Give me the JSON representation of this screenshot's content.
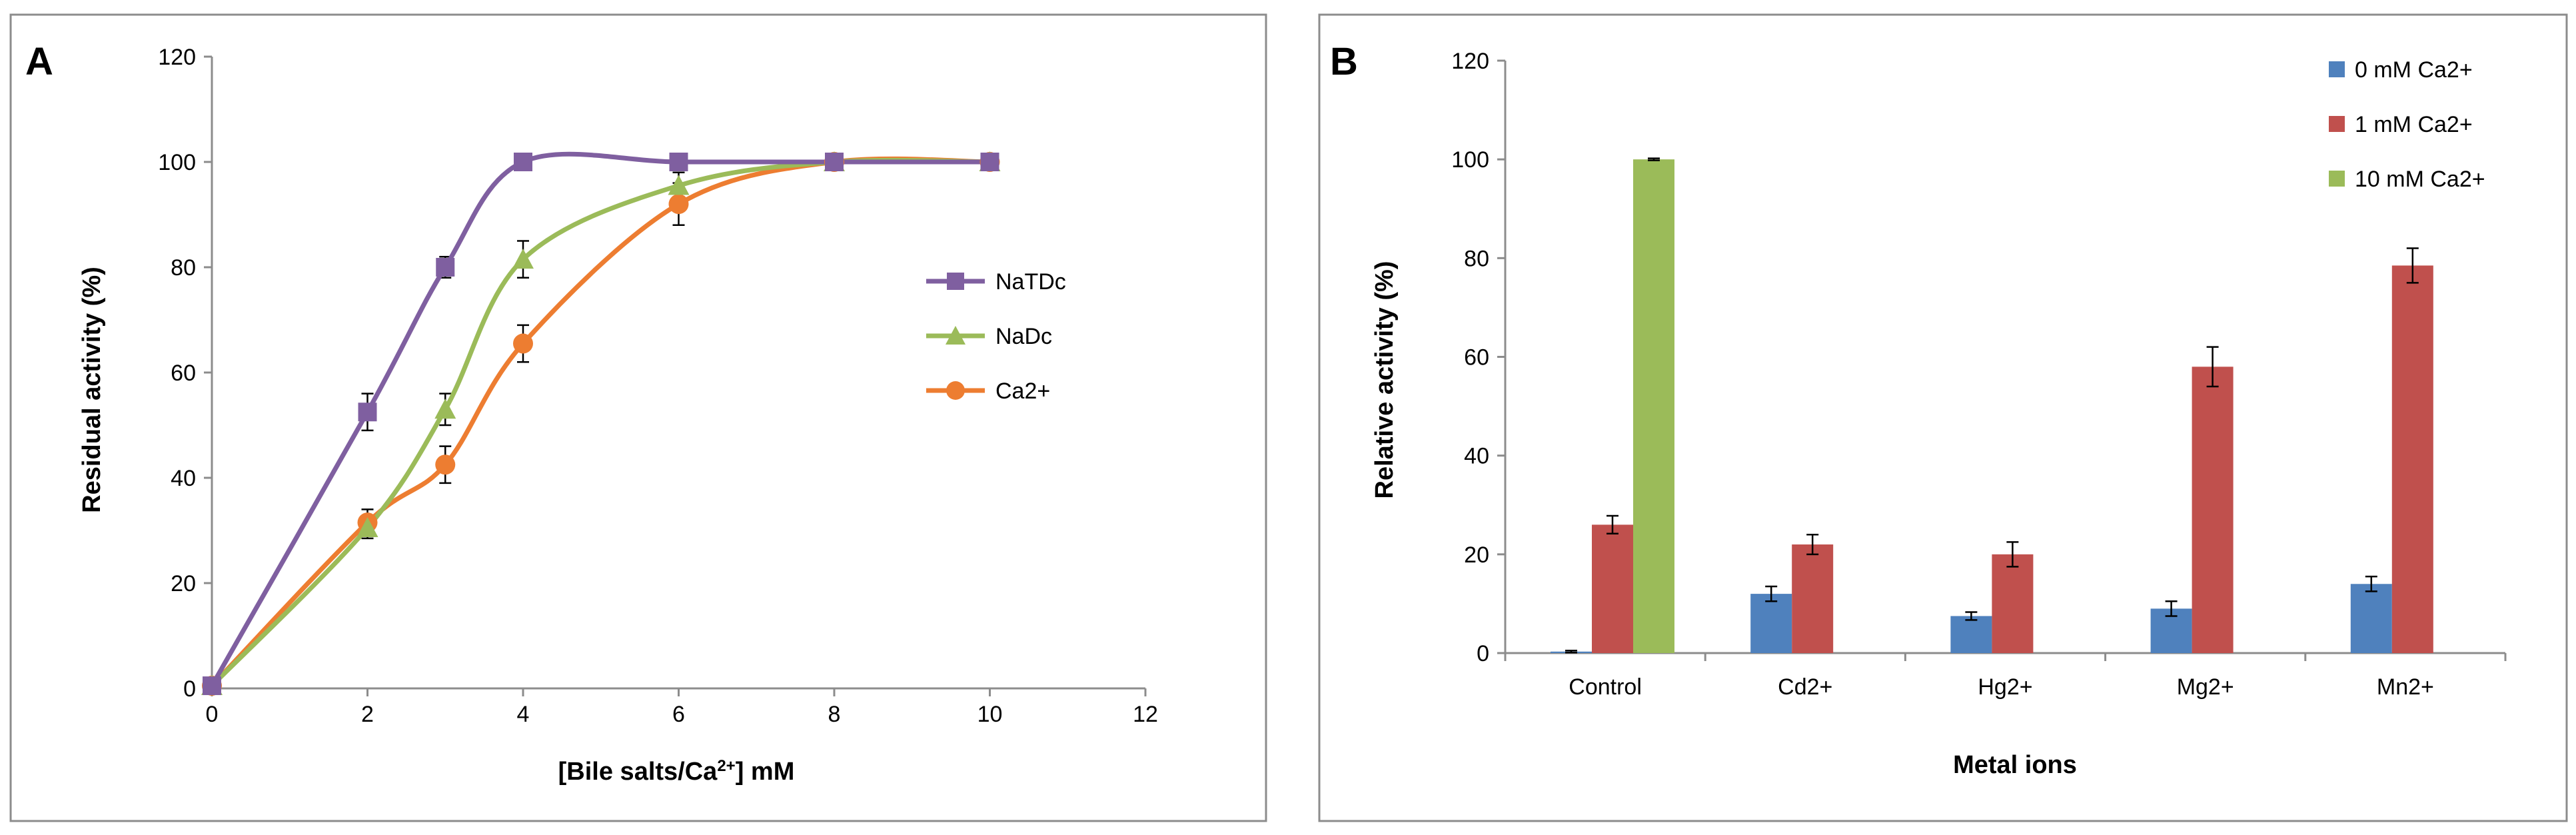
{
  "chart_data": [
    {
      "panel": "A",
      "type": "line",
      "xlabel_main": "[Bile salts/Ca",
      "xlabel_sup": "2+",
      "xlabel_tail": "] mM",
      "ylabel": "Residual activity (%)",
      "xlim": [
        0,
        12
      ],
      "ylim": [
        0,
        120
      ],
      "xticks": [
        0,
        2,
        4,
        6,
        8,
        10,
        12
      ],
      "yticks": [
        0,
        20,
        40,
        60,
        80,
        100,
        120
      ],
      "grid": false,
      "legend": "right",
      "series": [
        {
          "name": "NaTDc",
          "color": "#7f5fa0",
          "marker": "square",
          "x": [
            0,
            2,
            3,
            4,
            6,
            8,
            10
          ],
          "y": [
            0.5,
            52.5,
            80,
            100,
            100,
            100,
            100
          ],
          "err": [
            1,
            3.5,
            2,
            0.5,
            1,
            0.5,
            0.5
          ]
        },
        {
          "name": "NaDc",
          "color": "#9bbb59",
          "marker": "triangle",
          "x": [
            0,
            2,
            3,
            4,
            6,
            8,
            10
          ],
          "y": [
            0.5,
            30.5,
            53,
            81.5,
            95.5,
            100,
            100
          ],
          "err": [
            0.5,
            2,
            3,
            3.5,
            2.5,
            0.5,
            0.5
          ]
        },
        {
          "name": "Ca2+",
          "color": "#ed7d31",
          "marker": "circle",
          "x": [
            0,
            2,
            3,
            4,
            6,
            8,
            10
          ],
          "y": [
            0.5,
            31.5,
            42.5,
            65.5,
            92,
            100,
            100
          ],
          "err": [
            0.5,
            2.5,
            3.5,
            3.5,
            4,
            0.5,
            0.5
          ]
        }
      ]
    },
    {
      "panel": "B",
      "type": "bar",
      "xlabel": "Metal ions",
      "ylabel": "Relative activity (%)",
      "ylim": [
        0,
        120
      ],
      "yticks": [
        0,
        20,
        40,
        60,
        80,
        100,
        120
      ],
      "grid": false,
      "legend": "top-right",
      "categories": [
        "Control",
        "Cd2+",
        "Hg2+",
        "Mg2+",
        "Mn2+"
      ],
      "series": [
        {
          "name": "0 mM Ca2+",
          "color": "#4f81bd",
          "values": [
            0.3,
            12,
            7.5,
            9,
            14
          ],
          "err": [
            0.2,
            1.5,
            0.8,
            1.5,
            1.5
          ]
        },
        {
          "name": "1 mM Ca2+",
          "color": "#c0504d",
          "values": [
            26,
            22,
            20,
            58,
            78.5
          ],
          "err": [
            1.8,
            2,
            2.5,
            4,
            3.5
          ]
        },
        {
          "name": "10 mM Ca2+",
          "color": "#9bbb59",
          "values": [
            100,
            null,
            null,
            null,
            null
          ],
          "err": [
            0.2,
            null,
            null,
            null,
            null
          ]
        }
      ]
    }
  ]
}
